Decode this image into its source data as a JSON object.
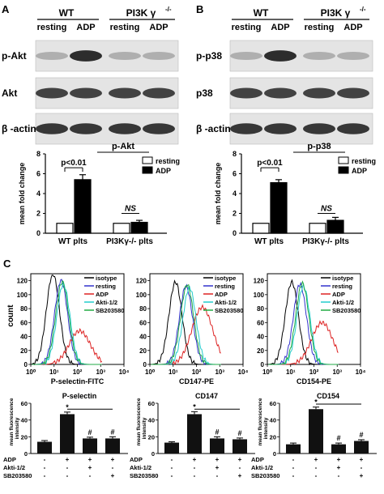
{
  "panels": {
    "A": {
      "letter": "A",
      "header": {
        "wt": "WT",
        "ko": "PI3K γ",
        "ko_sup": "-/-",
        "resting": "resting",
        "adp": "ADP"
      },
      "blots": [
        "p-Akt",
        "Akt",
        "β -actin"
      ],
      "bar_title": "p-Akt"
    },
    "B": {
      "letter": "B",
      "header": {
        "wt": "WT",
        "ko": "PI3K γ",
        "ko_sup": "-/-",
        "resting": "resting",
        "adp": "ADP"
      },
      "blots": [
        "p-p38",
        "p38",
        "β -actin"
      ],
      "bar_title": "p-p38"
    },
    "C": {
      "letter": "C",
      "flow_legend": [
        "isotype",
        "resting",
        "ADP",
        "Akti-1/2",
        "SB203580"
      ],
      "flow_colors": [
        "#000000",
        "#3333cc",
        "#dd2222",
        "#22cccc",
        "#22aa44"
      ],
      "flow_ylabel": "count",
      "bottom_rows": [
        "ADP",
        "Akti-1/2",
        "SB203580"
      ],
      "bottom_signs": [
        [
          "-",
          "+",
          "+",
          "+"
        ],
        [
          "-",
          "-",
          "+",
          "-"
        ],
        [
          "-",
          "-",
          "-",
          "+"
        ]
      ]
    }
  },
  "chart_data": [
    {
      "type": "bar",
      "panel": "A",
      "title": "p-Akt",
      "ylabel": "mean fold change",
      "groups": [
        "WT plts",
        "PI3Kγ-/- plts"
      ],
      "series": [
        {
          "name": "resting",
          "values": [
            1.0,
            1.0
          ]
        },
        {
          "name": "ADP",
          "values": [
            5.4,
            1.1
          ]
        }
      ],
      "errors": {
        "ADP": [
          0.5,
          0.2
        ]
      },
      "ylim": [
        0,
        8
      ],
      "yticks": [
        "0",
        "2",
        "4",
        "6",
        "8"
      ],
      "annotations": [
        "p<0.01",
        "NS"
      ]
    },
    {
      "type": "bar",
      "panel": "B",
      "title": "p-p38",
      "ylabel": "mean fold change",
      "groups": [
        "WT plts",
        "PI3Kγ-/- plts"
      ],
      "series": [
        {
          "name": "resting",
          "values": [
            1.0,
            1.0
          ]
        },
        {
          "name": "ADP",
          "values": [
            5.1,
            1.3
          ]
        }
      ],
      "errors": {
        "ADP": [
          0.3,
          0.3
        ]
      },
      "ylim": [
        0,
        8
      ],
      "yticks": [
        "0",
        "2",
        "4",
        "6",
        "8"
      ],
      "annotations": [
        "p<0.01",
        "NS"
      ]
    },
    {
      "type": "line",
      "panel": "C1",
      "xlabel": "P-selectin-FITC",
      "xscale": "log",
      "xticks": [
        "10⁰",
        "10¹",
        "10²",
        "10³",
        "10⁴"
      ],
      "yticks": [
        "0",
        "20",
        "40",
        "60",
        "80",
        "100",
        "120"
      ],
      "ylim": [
        0,
        120
      ],
      "peaks": [
        [
          "isotype",
          0.95,
          130
        ],
        [
          "resting",
          1.3,
          120
        ],
        [
          "ADP",
          2.1,
          48
        ],
        [
          "Akti-1/2",
          1.4,
          115
        ],
        [
          "SB203580",
          1.35,
          118
        ]
      ]
    },
    {
      "type": "line",
      "panel": "C2",
      "xlabel": "CD147-PE",
      "xscale": "log",
      "xticks": [
        "10⁰",
        "10¹",
        "10²",
        "10³",
        "10⁴"
      ],
      "yticks": [
        "0",
        "20",
        "40",
        "60",
        "80",
        "100",
        "120"
      ],
      "ylim": [
        0,
        120
      ],
      "peaks": [
        [
          "isotype",
          1.1,
          118
        ],
        [
          "resting",
          1.55,
          112
        ],
        [
          "ADP",
          2.25,
          82
        ],
        [
          "Akti-1/2",
          1.7,
          110
        ],
        [
          "SB203580",
          1.6,
          114
        ]
      ]
    },
    {
      "type": "line",
      "panel": "C3",
      "xlabel": "CD154-PE",
      "xscale": "log",
      "xticks": [
        "10⁰",
        "10¹",
        "10²",
        "10³",
        "10⁴"
      ],
      "yticks": [
        "0",
        "20",
        "40",
        "60",
        "80",
        "100",
        "120"
      ],
      "ylim": [
        0,
        120
      ],
      "peaks": [
        [
          "isotype",
          1.05,
          118
        ],
        [
          "resting",
          1.4,
          115
        ],
        [
          "ADP",
          2.35,
          60
        ],
        [
          "Akti-1/2",
          1.55,
          112
        ],
        [
          "SB203580",
          1.5,
          116
        ]
      ]
    },
    {
      "type": "bar",
      "panel": "C-bottom-1",
      "title": "P-selectin",
      "ylabel": "mean fluorescence intensity",
      "values": [
        14,
        47,
        18,
        18
      ],
      "errors": [
        1.5,
        2.5,
        1.5,
        2
      ],
      "ylim": [
        0,
        60
      ],
      "yticks": [
        "0",
        "20",
        "40",
        "60"
      ],
      "marks": [
        "",
        "*",
        "#",
        "#"
      ]
    },
    {
      "type": "bar",
      "panel": "C-bottom-2",
      "title": "CD147",
      "ylabel": "mean fluorescence intensity",
      "values": [
        13,
        47,
        18,
        17
      ],
      "errors": [
        1,
        3,
        2,
        1.5
      ],
      "ylim": [
        0,
        60
      ],
      "yticks": [
        "0",
        "20",
        "40",
        "60"
      ],
      "marks": [
        "",
        "*",
        "#",
        "#"
      ]
    },
    {
      "type": "bar",
      "panel": "C-bottom-3",
      "title": "CD154",
      "ylabel": "mean fluorescence intensity",
      "values": [
        11,
        53,
        11,
        15
      ],
      "errors": [
        1.5,
        2.5,
        1.5,
        1.5
      ],
      "ylim": [
        0,
        60
      ],
      "yticks": [
        "0",
        "20",
        "40",
        "60"
      ],
      "marks": [
        "",
        "*",
        "#",
        "#"
      ]
    }
  ]
}
